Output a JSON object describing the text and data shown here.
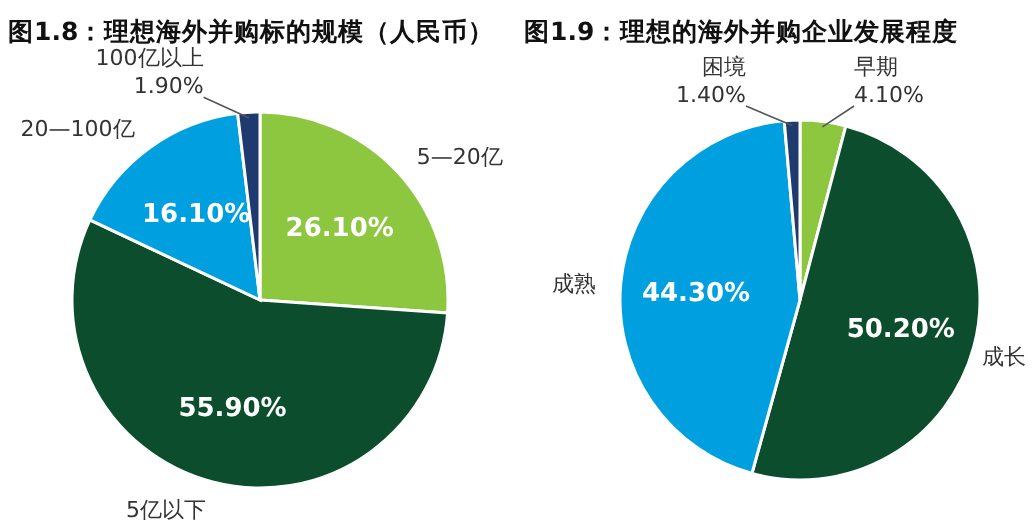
{
  "chart_data": [
    {
      "type": "pie",
      "title": "图1.8：理想海外并购标的规模（人民币）",
      "categories": [
        "5—20亿",
        "5亿以下",
        "20—100亿",
        "100亿以上"
      ],
      "values": [
        26.1,
        55.9,
        16.1,
        1.9
      ],
      "value_labels": [
        "26.10%",
        "55.90%",
        "16.10%",
        "1.90%"
      ],
      "colors": [
        "#8dc63f",
        "#0b4d2c",
        "#00a0e0",
        "#1f3a6e"
      ]
    },
    {
      "type": "pie",
      "title": "图1.9：理想的海外并购企业发展程度",
      "categories": [
        "早期",
        "成长",
        "成熟",
        "困境"
      ],
      "values": [
        4.1,
        50.2,
        44.3,
        1.4
      ],
      "value_labels": [
        "4.10%",
        "50.20%",
        "44.30%",
        "1.40%"
      ],
      "colors": [
        "#8dc63f",
        "#0b4d2c",
        "#00a0e0",
        "#1f3a6e"
      ]
    }
  ]
}
